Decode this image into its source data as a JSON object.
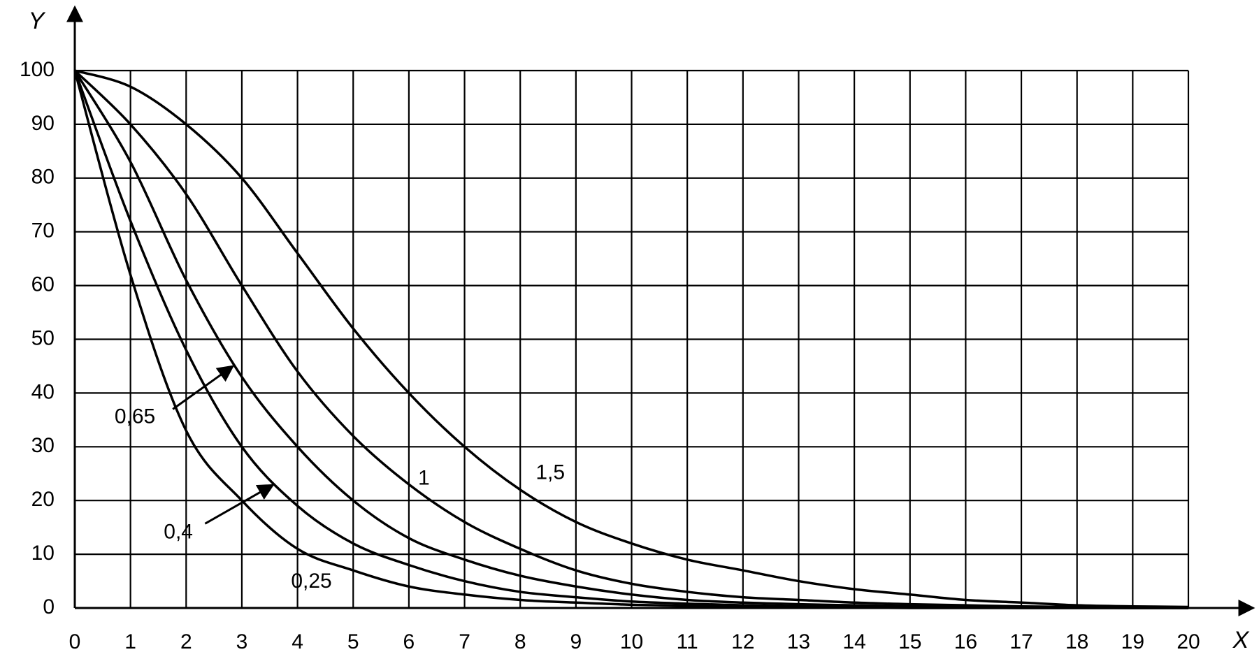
{
  "chart_data": {
    "type": "line",
    "x_label": "X",
    "y_label": "Y",
    "x": [
      0,
      1,
      2,
      3,
      4,
      5,
      6,
      7,
      8,
      9,
      10,
      11,
      12,
      13,
      14,
      15,
      16,
      17,
      18,
      19,
      20
    ],
    "series": [
      {
        "name": "0,25",
        "color": "#000000",
        "values": [
          100,
          62,
          33,
          20,
          11,
          7,
          4,
          2.5,
          1.5,
          1,
          0.6,
          0.4,
          0.2,
          0.1,
          0.1,
          0,
          0,
          0,
          0,
          0,
          0
        ]
      },
      {
        "name": "0,4",
        "color": "#000000",
        "values": [
          100,
          72,
          48,
          30,
          19,
          12,
          8,
          5,
          3,
          2,
          1.2,
          0.8,
          0.5,
          0.3,
          0.2,
          0.1,
          0.1,
          0,
          0,
          0,
          0
        ]
      },
      {
        "name": "0,65",
        "color": "#000000",
        "values": [
          100,
          83,
          61,
          43,
          30,
          20,
          13,
          9,
          6,
          4,
          2.5,
          1.5,
          1,
          0.7,
          0.5,
          0.3,
          0.2,
          0.1,
          0.1,
          0,
          0
        ]
      },
      {
        "name": "1",
        "color": "#000000",
        "values": [
          100,
          90,
          77,
          60,
          44,
          32,
          23,
          16,
          11,
          7,
          4.5,
          3,
          2,
          1.5,
          1,
          0.7,
          0.5,
          0.3,
          0.2,
          0.1,
          0
        ]
      },
      {
        "name": "1,5",
        "color": "#000000",
        "values": [
          100,
          97,
          90,
          80,
          66,
          52,
          40,
          30,
          22,
          16,
          12,
          9,
          7,
          5,
          3.5,
          2.5,
          1.5,
          1,
          0.5,
          0.3,
          0.2
        ]
      }
    ],
    "xlim": [
      0,
      20
    ],
    "ylim": [
      0,
      100
    ],
    "xticks": [
      0,
      1,
      2,
      3,
      4,
      5,
      6,
      7,
      8,
      9,
      10,
      11,
      12,
      13,
      14,
      15,
      16,
      17,
      18,
      19,
      20
    ],
    "yticks": [
      0,
      10,
      20,
      30,
      40,
      50,
      60,
      70,
      80,
      90,
      100
    ],
    "grid": true
  }
}
